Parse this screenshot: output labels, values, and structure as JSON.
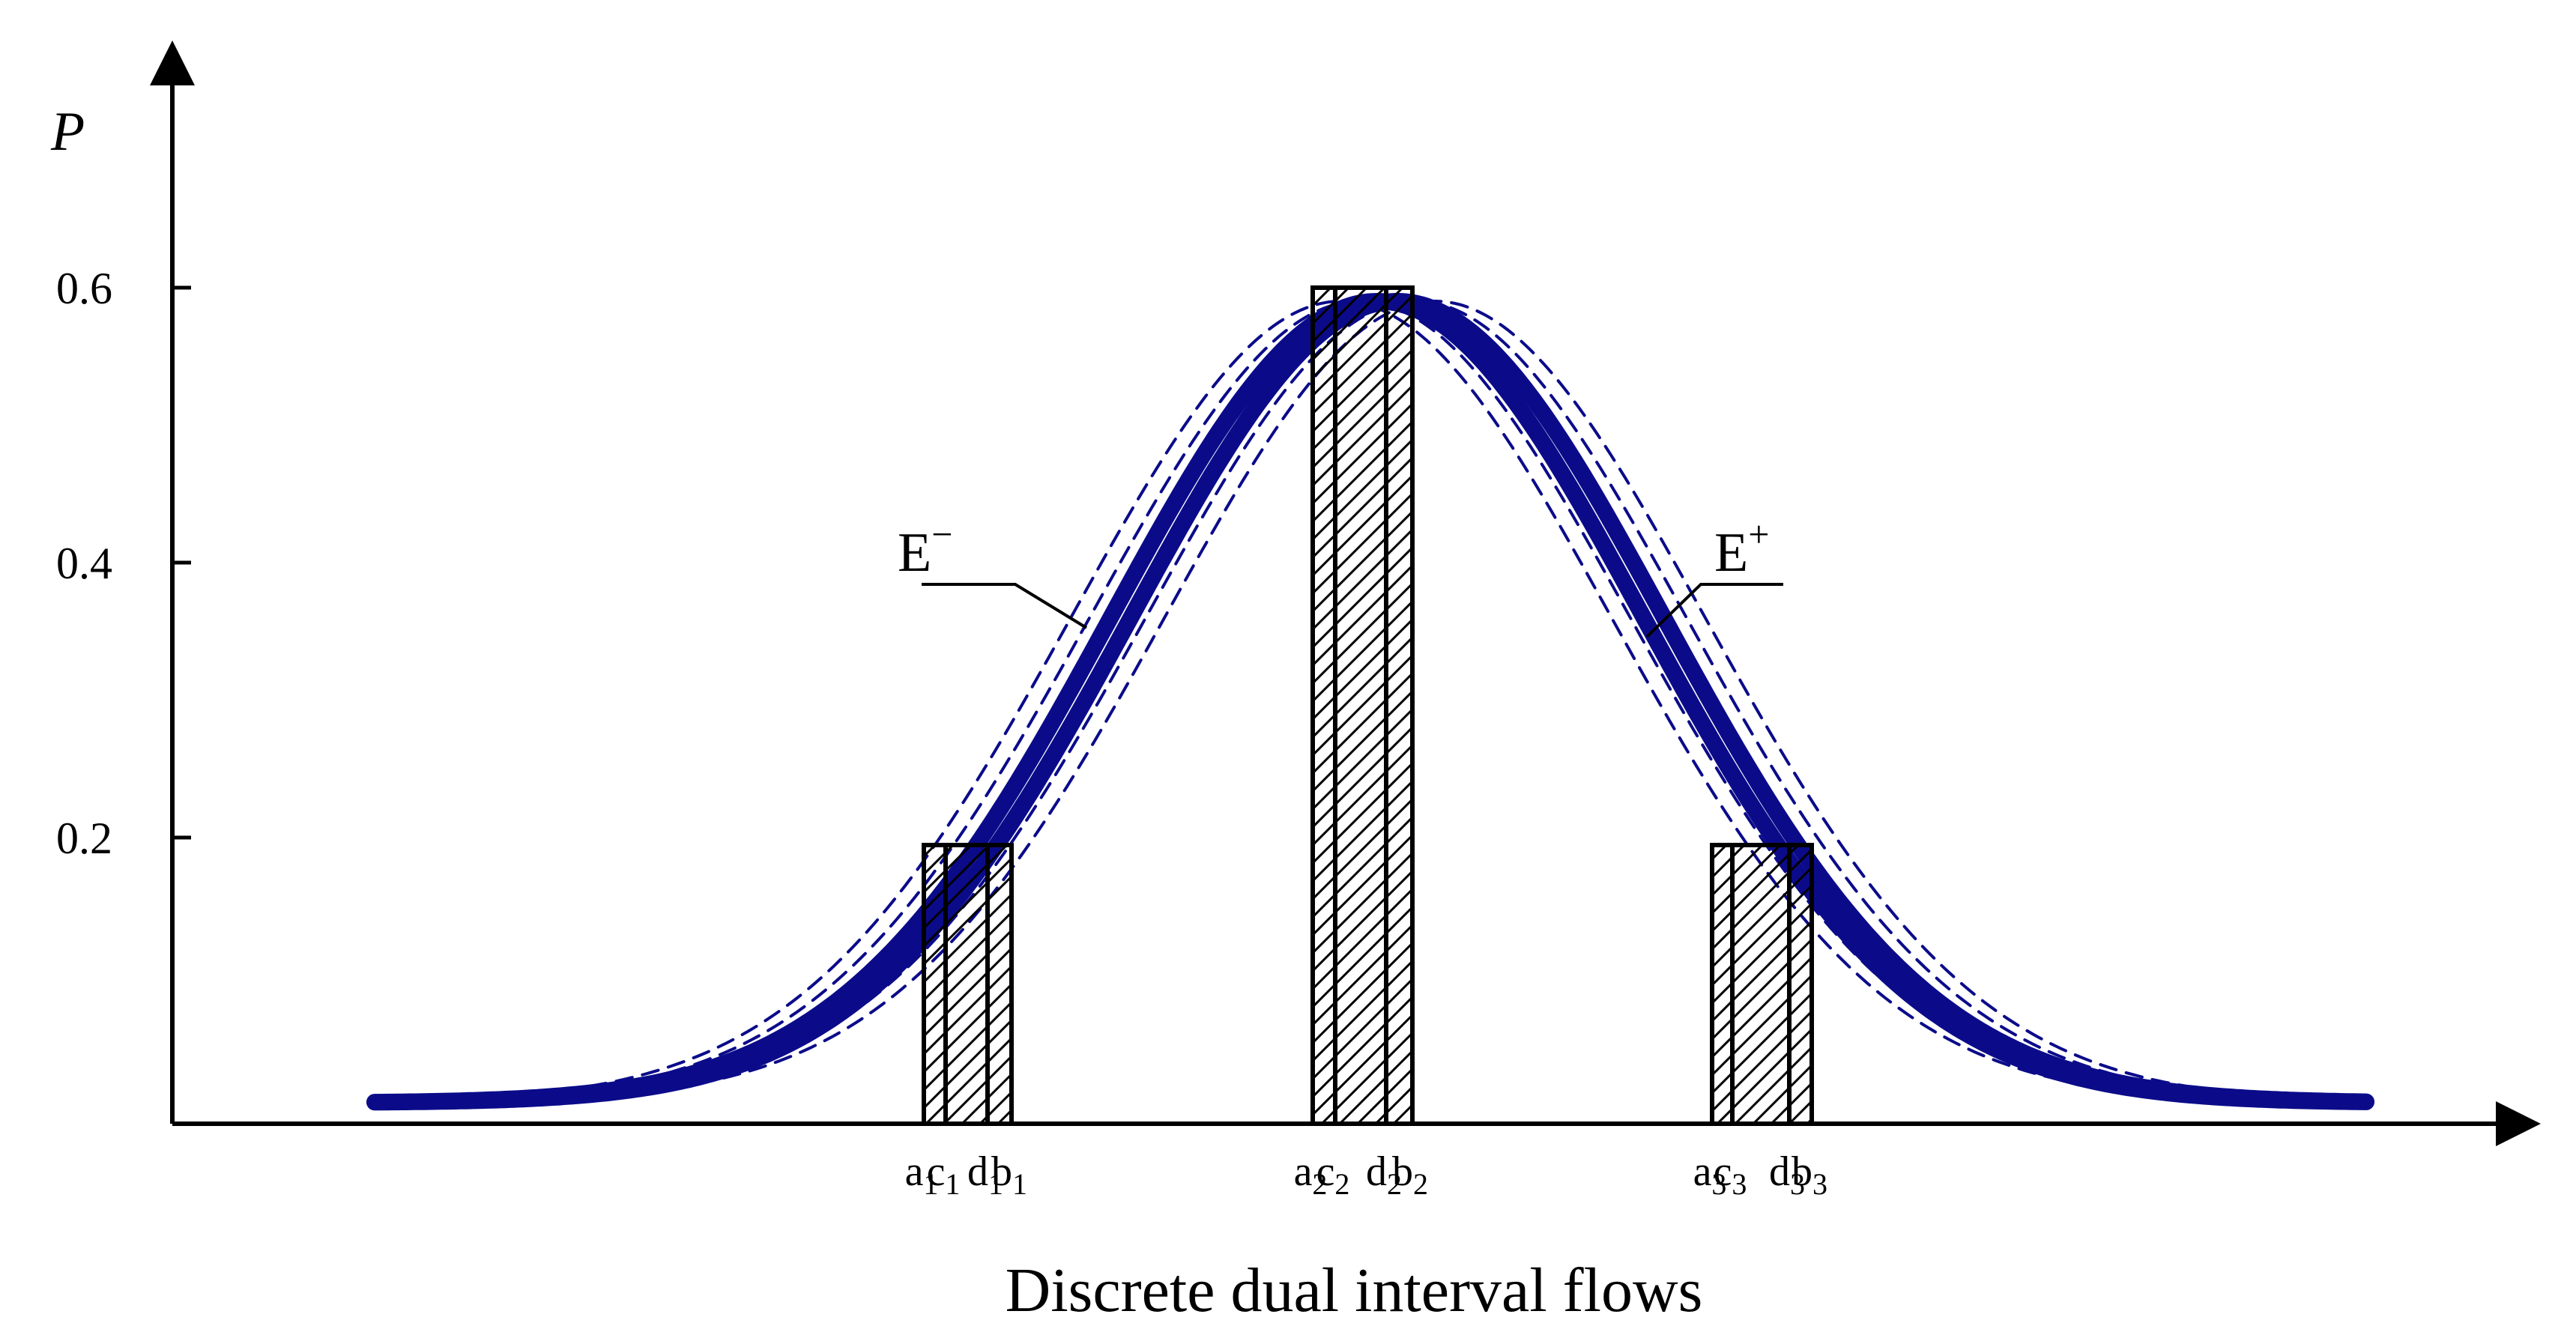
{
  "axes": {
    "y_title": "P",
    "x_title": "Discrete dual interval flows",
    "y_ticks": [
      "0.2",
      "0.4",
      "0.6"
    ]
  },
  "curve_labels": {
    "left_base": "E",
    "left_sup": "−",
    "right_base": "E",
    "right_sup": "+"
  },
  "intervals": [
    {
      "height": 0.2,
      "labels": [
        {
          "base": "a",
          "sub": "1"
        },
        {
          "base": "c",
          "sub": "1"
        },
        {
          "base": "d",
          "sub": "1"
        },
        {
          "base": "b",
          "sub": "1"
        }
      ]
    },
    {
      "height": 0.6,
      "labels": [
        {
          "base": "a",
          "sub": "2"
        },
        {
          "base": "c",
          "sub": "2"
        },
        {
          "base": "d",
          "sub": "2"
        },
        {
          "base": "b",
          "sub": "2"
        }
      ]
    },
    {
      "height": 0.2,
      "labels": [
        {
          "base": "a",
          "sub": "3"
        },
        {
          "base": "c",
          "sub": "3"
        },
        {
          "base": "d",
          "sub": "3"
        },
        {
          "base": "b",
          "sub": "3"
        }
      ]
    }
  ],
  "colors": {
    "curve": "#0b0b8a",
    "axis": "#000000"
  }
}
